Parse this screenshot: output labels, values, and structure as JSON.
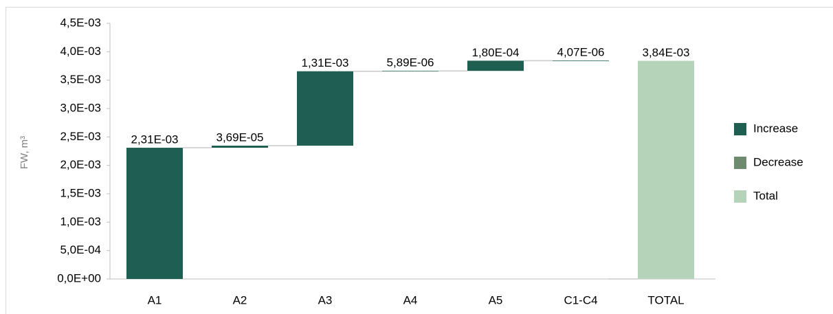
{
  "chart_data": {
    "type": "waterfall",
    "y_label": "FW, m³",
    "categories": [
      "A1",
      "A2",
      "A3",
      "A4",
      "A5",
      "C1-C4",
      "TOTAL"
    ],
    "series": [
      {
        "name": "Increase",
        "color": "#1f5f52",
        "values": [
          0.00231,
          3.69e-05,
          0.00131,
          5.89e-06,
          0.00018,
          4.07e-06,
          null
        ],
        "value_labels": [
          "2,31E-03",
          "3,69E-05",
          "1,31E-03",
          "5,89E-06",
          "1,80E-04",
          "4,07E-06",
          null
        ]
      },
      {
        "name": "Decrease",
        "color": "#6e8b6f",
        "values": [
          null,
          null,
          null,
          null,
          null,
          null,
          null
        ],
        "value_labels": [
          null,
          null,
          null,
          null,
          null,
          null,
          null
        ]
      },
      {
        "name": "Total",
        "color": "#b5d3b9",
        "values": [
          null,
          null,
          null,
          null,
          null,
          null,
          0.00384
        ],
        "value_labels": [
          null,
          null,
          null,
          null,
          null,
          null,
          "3,84E-03"
        ]
      }
    ],
    "ylim": [
      0,
      0.0045
    ],
    "yticks": [
      {
        "value": 0,
        "label": "0,0E+00"
      },
      {
        "value": 0.0005,
        "label": "5,0E-04"
      },
      {
        "value": 0.001,
        "label": "1,0E-03"
      },
      {
        "value": 0.0015,
        "label": "1,5E-03"
      },
      {
        "value": 0.002,
        "label": "2,0E-03"
      },
      {
        "value": 0.0025,
        "label": "2,5E-03"
      },
      {
        "value": 0.003,
        "label": "3,0E-03"
      },
      {
        "value": 0.0035,
        "label": "3,5E-03"
      },
      {
        "value": 0.004,
        "label": "4,0E-03"
      },
      {
        "value": 0.0045,
        "label": "4,5E-03"
      }
    ],
    "grid": false,
    "legend": "right"
  }
}
